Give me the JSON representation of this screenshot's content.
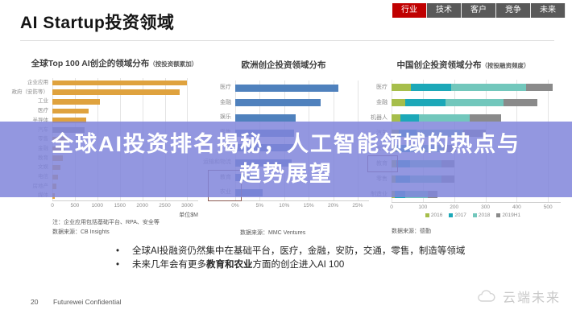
{
  "header": {
    "title": "AI Startup投资领域",
    "tabs": [
      {
        "label": "行业",
        "active": true
      },
      {
        "label": "技术",
        "active": false
      },
      {
        "label": "客户",
        "active": false
      },
      {
        "label": "竞争",
        "active": false
      },
      {
        "label": "未来",
        "active": false
      }
    ],
    "tab_active_color": "#C00000",
    "tab_color": "#595959"
  },
  "banner": {
    "line1": "全球AI投资排名揭秘，人工智能领域的热点与",
    "line2": "趋势展望",
    "bg_color": "#8085DB",
    "text_color": "#FFFFFF"
  },
  "chart_data": [
    {
      "type": "bar",
      "title": "全球Top 100 AI创企的领域分布",
      "subtitle": "（按投资额累加）",
      "categories": [
        "企业应用",
        "政府（安防等）",
        "工业",
        "医疗",
        "半导体",
        "汽车",
        "零售",
        "金融",
        "教育",
        "文娱",
        "电信",
        "房地产",
        "媒体"
      ],
      "values": [
        3000,
        2840,
        1050,
        810,
        760,
        720,
        340,
        260,
        230,
        180,
        120,
        90,
        45
      ],
      "bar_color": "#DFA23E",
      "highlight": {
        "index": 5,
        "color": "#8F8F8F"
      },
      "xlabel_unit": "单位$M",
      "xtick_values": [
        0,
        500,
        1000,
        1500,
        2000,
        2500,
        3000
      ],
      "xtick_labels": [
        "0",
        "500",
        "1000",
        "1500",
        "2000",
        "2500",
        "3000"
      ],
      "xmax": 3100,
      "grid": true,
      "note": "注：企业应用包括基础平台、RPA、安全等",
      "source": "数据来源：CB Insights"
    },
    {
      "type": "bar",
      "title": "欧洲创企投资领域分布",
      "subtitle": "",
      "categories": [
        "医疗",
        "金融",
        "娱乐",
        "零售",
        "制造",
        "运输和物流",
        "教育",
        "农业"
      ],
      "values": [
        21,
        17.5,
        12.4,
        12,
        11.8,
        11.5,
        4.8,
        5.6
      ],
      "bar_color": "#4F81BD",
      "box_rows": [
        6,
        7
      ],
      "box_color": "#8A5A52",
      "xtick_values": [
        0,
        5,
        10,
        15,
        20,
        25
      ],
      "xtick_labels": [
        "0%",
        "5%",
        "10%",
        "15%",
        "20%",
        "25%"
      ],
      "xmax": 26,
      "grid": true,
      "source": "数据来源：MMC Ventures"
    },
    {
      "type": "stacked_bar",
      "title": "中国创企投资领域分布",
      "subtitle": "（按投融资频度）",
      "categories": [
        "医疗",
        "金融",
        "机器人",
        "汽车",
        "安防",
        "教育",
        "零售",
        "制造业"
      ],
      "series": [
        {
          "name": "2016",
          "color": "#A6BE4B",
          "values": [
            62,
            44,
            28,
            22,
            15,
            15,
            14,
            10
          ]
        },
        {
          "name": "2017",
          "color": "#1CA8B8",
          "values": [
            128,
            129,
            60,
            58,
            50,
            45,
            44,
            35
          ]
        },
        {
          "name": "2018",
          "color": "#72C7BC",
          "values": [
            240,
            185,
            162,
            150,
            100,
            100,
            102,
            70
          ]
        },
        {
          "name": "2019H1",
          "color": "#8A8A8A",
          "values": [
            85,
            108,
            100,
            70,
            40,
            40,
            40,
            32
          ]
        }
      ],
      "box_rows": [
        5
      ],
      "box_color": "#8A5A52",
      "xtick_values": [
        0,
        100,
        200,
        300,
        400,
        500
      ],
      "xtick_labels": [
        "0",
        "100",
        "200",
        "300",
        "400",
        "500"
      ],
      "xmax": 520,
      "grid": true,
      "legend_position": "bottom",
      "source": "数据来源：德勤"
    }
  ],
  "bullets": [
    {
      "text": "全球AI投融资仍然集中在基础平台，医疗，金融，安防，交通，零售，制造等领域"
    },
    {
      "prefix": "未来几年会有更多",
      "bold": "教育和农业",
      "suffix": "方面的创企进入AI 100"
    }
  ],
  "footer": {
    "page_number": "20",
    "confidential": "Futurewei Confidential"
  },
  "watermark": {
    "text": "云端未来"
  }
}
